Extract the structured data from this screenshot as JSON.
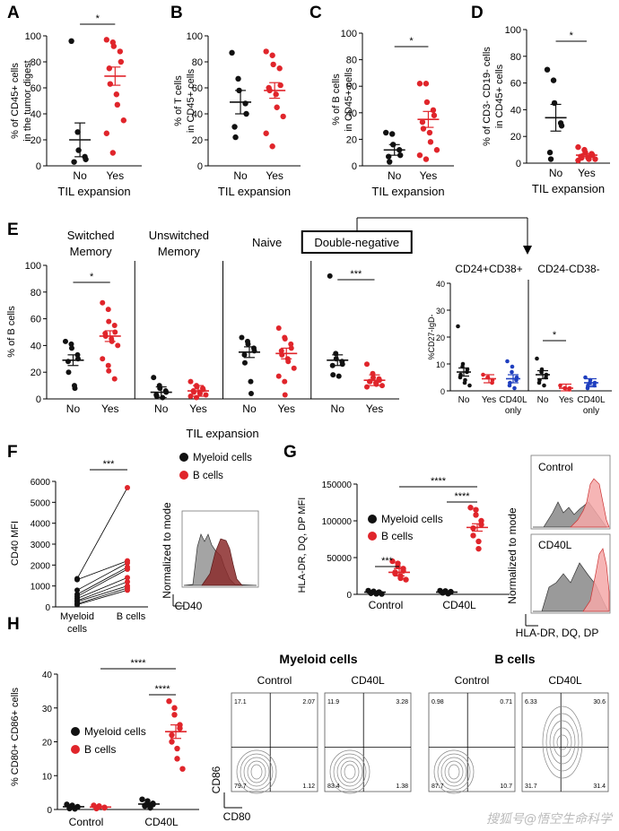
{
  "colors": {
    "red": "#e0252b",
    "black": "#111111",
    "blue": "#1f3fbf",
    "gray": "#9a9a9a",
    "pink": "#f4a8a8"
  },
  "watermark": "搜狐号@悟空生命科学",
  "panels": {
    "A": {
      "label": "A",
      "ylabel": [
        "% of CD45+ cells",
        "in the tumor digest"
      ],
      "ticks": [
        "0",
        "20",
        "40",
        "60",
        "80",
        "100"
      ],
      "xcats": [
        "No",
        "Yes"
      ],
      "xtitle": "TIL expansion",
      "sig": "*"
    },
    "B": {
      "label": "B",
      "ylabel": [
        "% of T cells",
        "in CD45+ cells"
      ],
      "ticks": [
        "0",
        "20",
        "40",
        "60",
        "80",
        "100"
      ],
      "xcats": [
        "No",
        "Yes"
      ],
      "xtitle": "TIL expansion",
      "sig": ""
    },
    "C": {
      "label": "C",
      "ylabel": [
        "% of B cells",
        "in CD45+ cells"
      ],
      "ticks": [
        "0",
        "20",
        "40",
        "60",
        "80",
        "100"
      ],
      "xcats": [
        "No",
        "Yes"
      ],
      "xtitle": "TIL expansion",
      "sig": "*"
    },
    "D": {
      "label": "D",
      "ylabel": [
        "% of CD3- CD19- cells",
        "in CD45+ cells"
      ],
      "ticks": [
        "0",
        "20",
        "40",
        "60",
        "80",
        "100"
      ],
      "xcats": [
        "No",
        "Yes"
      ],
      "xtitle": "TIL expansion",
      "sig": "*"
    },
    "E": {
      "label": "E",
      "ylabel": "% of B cells",
      "ticks": [
        "0",
        "20",
        "40",
        "60",
        "80",
        "100"
      ],
      "groups": [
        "Switched\nMemory",
        "Unswitched\nMemory",
        "Naive",
        "Double-negative"
      ],
      "xcats": [
        "No",
        "Yes"
      ],
      "xtitle": "TIL expansion",
      "sigs": [
        "*",
        "",
        "",
        "***"
      ],
      "inset": {
        "titles": [
          "CD24+CD38+",
          "CD24-CD38-"
        ],
        "ylabel": "%CD27-IgD-",
        "ticks": [
          "0",
          "10",
          "20",
          "30",
          "40"
        ],
        "xcats": [
          "No",
          "Yes",
          "CD40L",
          "No",
          "Yes",
          "CD40L"
        ],
        "xcats2": [
          "",
          "",
          "only",
          "",
          "",
          "only"
        ],
        "sig": "*"
      }
    },
    "F": {
      "label": "F",
      "ylabel": "CD40 MFI",
      "ticks": [
        "0",
        "1000",
        "2000",
        "3000",
        "4000",
        "5000",
        "6000"
      ],
      "xcats": [
        "Myeloid\ncells",
        "B cells"
      ],
      "sig": "***",
      "legend": [
        "Myeloid cells",
        "B cells"
      ],
      "hist_ylabel": "Normalized to mode",
      "hist_xlabel": "CD40"
    },
    "G": {
      "label": "G",
      "ylabel": "HLA-DR, DQ, DP MFI",
      "ticks": [
        "0",
        "50000",
        "100000",
        "150000"
      ],
      "xcats": [
        "Control",
        "CD40L"
      ],
      "sigs": [
        "****",
        "****",
        "***"
      ],
      "legend": [
        "Myeloid cells",
        "B cells"
      ],
      "hist_titles": [
        "Control",
        "CD40L"
      ],
      "hist_ylabel": "Normalized to mode",
      "hist_xlabel": "HLA-DR, DQ, DP"
    },
    "H": {
      "label": "H",
      "ylabel": "% CD80+ CD86+ cells",
      "ticks": [
        "0",
        "10",
        "20",
        "30",
        "40"
      ],
      "xcats": [
        "Control",
        "CD40L"
      ],
      "sigs": [
        "****",
        "****"
      ],
      "legend": [
        "Myeloid cells",
        "B cells"
      ],
      "flow_headers": [
        "Myeloid cells",
        "B cells"
      ],
      "flow_cols": [
        "Control",
        "CD40L",
        "Control",
        "CD40L"
      ],
      "flow_quads": [
        [
          "17.1",
          "2.07",
          "79.7",
          "1.12"
        ],
        [
          "11.9",
          "3.28",
          "83.4",
          "1.38"
        ],
        [
          "0.98",
          "0.71",
          "87.7",
          "10.7"
        ],
        [
          "6.33",
          "30.6",
          "31.7",
          "31.4"
        ]
      ],
      "flow_ylabel": "CD86",
      "flow_xlabel": "CD80"
    }
  },
  "chart_data": [
    {
      "type": "scatter",
      "panel": "A",
      "categories": [
        "No",
        "Yes"
      ],
      "ylim": [
        0,
        100
      ],
      "xlabel": "TIL expansion",
      "ylabel": "% of CD45+ cells in the tumor digest",
      "series": [
        {
          "values": [
            96,
            26,
            12,
            7,
            5,
            3
          ]
        },
        {
          "values": [
            97,
            95,
            92,
            88,
            80,
            75,
            63,
            55,
            47,
            35,
            25,
            10
          ]
        }
      ],
      "means": [
        20,
        69
      ],
      "sems": [
        13,
        7
      ]
    },
    {
      "type": "scatter",
      "panel": "B",
      "categories": [
        "No",
        "Yes"
      ],
      "ylim": [
        0,
        100
      ],
      "xlabel": "TIL expansion",
      "ylabel": "% of T cells in CD45+ cells",
      "series": [
        {
          "values": [
            87,
            67,
            58,
            48,
            40,
            30,
            22
          ]
        },
        {
          "values": [
            88,
            85,
            78,
            75,
            62,
            60,
            58,
            55,
            45,
            38,
            25,
            15
          ]
        }
      ],
      "means": [
        49,
        58
      ],
      "sems": [
        9,
        6
      ]
    },
    {
      "type": "scatter",
      "panel": "C",
      "categories": [
        "No",
        "Yes"
      ],
      "ylim": [
        0,
        100
      ],
      "xlabel": "TIL expansion",
      "ylabel": "% of B cells in CD45+ cells",
      "series": [
        {
          "values": [
            25,
            24,
            16,
            12,
            8,
            7,
            3
          ]
        },
        {
          "values": [
            62,
            62,
            48,
            42,
            38,
            33,
            28,
            25,
            18,
            12,
            8,
            5
          ]
        }
      ],
      "means": [
        12,
        35
      ],
      "sems": [
        4,
        6
      ]
    },
    {
      "type": "scatter",
      "panel": "D",
      "categories": [
        "No",
        "Yes"
      ],
      "ylim": [
        0,
        100
      ],
      "xlabel": "TIL expansion",
      "ylabel": "% of CD3- CD19- cells in CD45+ cells",
      "series": [
        {
          "values": [
            70,
            62,
            45,
            30,
            28,
            8,
            3
          ]
        },
        {
          "values": [
            12,
            10,
            8,
            7,
            6,
            5,
            4,
            4,
            3,
            3,
            2
          ]
        }
      ],
      "means": [
        34,
        6
      ],
      "sems": [
        10,
        1
      ]
    },
    {
      "type": "scatter",
      "panel": "E",
      "categories": [
        "Switched Memory",
        "Unswitched Memory",
        "Naive",
        "Double-negative"
      ],
      "ylim": [
        0,
        100
      ],
      "ylabel": "% of B cells",
      "series": [
        {
          "name": "No",
          "values": [
            [
              43,
              41,
              38,
              33,
              30,
              28,
              20,
              10,
              8
            ],
            [
              16,
              10,
              8,
              6,
              5,
              3,
              2,
              1
            ],
            [
              46,
              43,
              41,
              38,
              36,
              33,
              27,
              13,
              4
            ],
            [
              92,
              34,
              30,
              28,
              26,
              25,
              18,
              17
            ]
          ]
        },
        {
          "name": "Yes",
          "values": [
            [
              72,
              67,
              58,
              55,
              50,
              49,
              47,
              45,
              43,
              40,
              30,
              25,
              21,
              15
            ],
            [
              13,
              10,
              9,
              8,
              7,
              6,
              5,
              5,
              4,
              3,
              2,
              1
            ],
            [
              53,
              46,
              45,
              41,
              38,
              36,
              33,
              30,
              28,
              23,
              17,
              13,
              3
            ],
            [
              26,
              19,
              16,
              15,
              14,
              13,
              13,
              12,
              11,
              10,
              9
            ]
          ]
        }
      ],
      "means": [
        [
          29,
          47
        ],
        [
          5,
          6
        ],
        [
          35,
          34
        ],
        [
          29,
          14
        ]
      ]
    },
    {
      "type": "scatter",
      "panel": "E-inset",
      "categories": [
        "No",
        "Yes",
        "CD40L only",
        "No",
        "Yes",
        "CD40L only"
      ],
      "ylim": [
        0,
        40
      ],
      "ylabel": "%CD27-IgD-",
      "series": [
        {
          "values": [
            [
              24,
              10,
              9,
              8,
              7,
              6,
              5,
              4,
              3,
              2
            ],
            [
              6,
              5,
              5,
              4,
              3
            ],
            [
              11,
              9,
              7,
              5,
              4,
              3,
              2,
              1
            ],
            [
              12,
              8,
              7,
              6,
              5,
              4,
              3,
              2
            ],
            [
              2,
              1,
              1,
              1,
              0.5
            ],
            [
              5,
              4,
              3,
              3,
              2,
              2,
              1
            ]
          ]
        }
      ],
      "means": [
        7,
        4.5,
        4.5,
        6,
        1,
        3
      ]
    },
    {
      "type": "line",
      "panel": "F",
      "categories": [
        "Myeloid cells",
        "B cells"
      ],
      "ylim": [
        0,
        6000
      ],
      "ylabel": "CD40 MFI",
      "pairs": [
        [
          1350,
          5700
        ],
        [
          1300,
          2200
        ],
        [
          800,
          2100
        ],
        [
          600,
          1900
        ],
        [
          500,
          1800
        ],
        [
          400,
          1400
        ],
        [
          300,
          1200
        ],
        [
          250,
          1000
        ],
        [
          150,
          900
        ],
        [
          100,
          800
        ]
      ]
    },
    {
      "type": "scatter",
      "panel": "G",
      "categories": [
        "Control",
        "CD40L"
      ],
      "ylim": [
        0,
        150000
      ],
      "ylabel": "HLA-DR, DQ, DP MFI",
      "series": [
        {
          "name": "Myeloid cells",
          "values": [
            [
              5000,
              4000,
              3500,
              3000,
              2500,
              2000,
              1500,
              1000,
              800,
              500
            ],
            [
              5000,
              4500,
              4000,
              3500,
              3000,
              2500,
              2000,
              1500,
              1000
            ]
          ]
        },
        {
          "name": "B cells",
          "values": [
            [
              45000,
              42000,
              38000,
              35000,
              32000,
              30000,
              28000,
              25000,
              22000,
              20000
            ],
            [
              118000,
              115000,
              108000,
              100000,
              95000,
              90000,
              80000,
              72000,
              62000
            ]
          ]
        }
      ],
      "means": [
        [
          3000,
          30000
        ],
        [
          3000,
          91000
        ]
      ]
    },
    {
      "type": "scatter",
      "panel": "H",
      "categories": [
        "Control",
        "CD40L"
      ],
      "ylim": [
        0,
        40
      ],
      "ylabel": "% CD80+ CD86+ cells",
      "series": [
        {
          "name": "Myeloid cells",
          "values": [
            [
              1.5,
              1.2,
              1,
              0.8,
              0.7,
              0.5,
              0.3,
              0.2
            ],
            [
              3,
              2.5,
              2,
              1.8,
              1.5,
              1.2,
              1,
              0.8,
              0.5
            ]
          ]
        },
        {
          "name": "B cells",
          "values": [
            [
              1.2,
              1,
              0.8,
              0.6,
              0.5,
              0.4,
              0.3
            ],
            [
              32,
              30,
              28,
              25,
              24,
              22,
              20,
              18,
              15,
              12
            ]
          ]
        }
      ],
      "means": [
        [
          0.8,
          0.7
        ],
        [
          1.6,
          23
        ]
      ]
    }
  ]
}
